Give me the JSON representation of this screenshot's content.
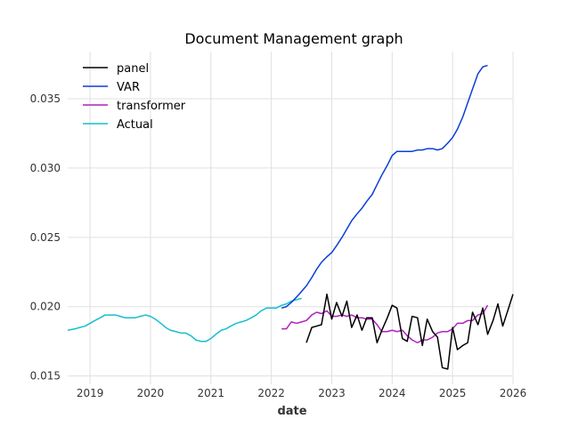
{
  "chart_data": {
    "type": "line",
    "title": "Document Management graph",
    "xlabel": "date",
    "ylabel": "",
    "xlim": [
      2018.63,
      2026.0
    ],
    "ylim": [
      0.0144,
      0.0384
    ],
    "grid": true,
    "legend_position": "top-left",
    "x_ticks": [
      2019,
      2020,
      2021,
      2022,
      2023,
      2024,
      2025,
      2026
    ],
    "x_tick_labels": [
      "2019",
      "2020",
      "2021",
      "2022",
      "2023",
      "2024",
      "2025",
      "2026"
    ],
    "y_ticks": [
      0.015,
      0.02,
      0.025,
      0.03,
      0.035
    ],
    "y_tick_labels": [
      "0.015",
      "0.020",
      "0.025",
      "0.030",
      "0.035"
    ],
    "series": [
      {
        "name": "panel",
        "color": "#000000",
        "x": [
          2022.58,
          2022.67,
          2022.75,
          2022.83,
          2022.92,
          2023.0,
          2023.08,
          2023.17,
          2023.25,
          2023.33,
          2023.42,
          2023.5,
          2023.58,
          2023.67,
          2023.75,
          2023.83,
          2023.92,
          2024.0,
          2024.08,
          2024.17,
          2024.25,
          2024.33,
          2024.42,
          2024.5,
          2024.58,
          2024.67,
          2024.75,
          2024.83,
          2024.92,
          2025.0,
          2025.08,
          2025.17,
          2025.25,
          2025.33,
          2025.42,
          2025.5,
          2025.58,
          2025.67,
          2025.75,
          2025.83,
          2025.92,
          2026.0
        ],
        "y": [
          0.0174,
          0.0185,
          0.0186,
          0.0187,
          0.0209,
          0.0191,
          0.0203,
          0.0193,
          0.0204,
          0.0185,
          0.0194,
          0.0183,
          0.0192,
          0.0192,
          0.0174,
          0.0183,
          0.0192,
          0.0201,
          0.0199,
          0.0177,
          0.0175,
          0.0193,
          0.0192,
          0.0172,
          0.0191,
          0.0182,
          0.0178,
          0.0156,
          0.0155,
          0.0185,
          0.0169,
          0.0172,
          0.0174,
          0.0196,
          0.0187,
          0.0199,
          0.018,
          0.019,
          0.0202,
          0.0186,
          0.0198,
          0.0209
        ]
      },
      {
        "name": "VAR",
        "color": "#0a3fd8",
        "x": [
          2022.17,
          2022.25,
          2022.33,
          2022.42,
          2022.5,
          2022.58,
          2022.67,
          2022.75,
          2022.83,
          2022.92,
          2023.0,
          2023.08,
          2023.17,
          2023.25,
          2023.33,
          2023.42,
          2023.5,
          2023.58,
          2023.67,
          2023.75,
          2023.83,
          2023.92,
          2024.0,
          2024.08,
          2024.17,
          2024.25,
          2024.33,
          2024.42,
          2024.5,
          2024.58,
          2024.67,
          2024.75,
          2024.83,
          2024.92,
          2025.0,
          2025.08,
          2025.17,
          2025.25,
          2025.33,
          2025.42,
          2025.5,
          2025.58
        ],
        "y": [
          0.0199,
          0.02,
          0.0203,
          0.0207,
          0.0211,
          0.0215,
          0.0221,
          0.0227,
          0.0232,
          0.0236,
          0.0239,
          0.0244,
          0.025,
          0.0256,
          0.0262,
          0.0267,
          0.0271,
          0.0276,
          0.0281,
          0.0288,
          0.0295,
          0.0302,
          0.0309,
          0.0312,
          0.0312,
          0.0312,
          0.0312,
          0.0313,
          0.0313,
          0.0314,
          0.0314,
          0.0313,
          0.0314,
          0.0318,
          0.0322,
          0.0328,
          0.0337,
          0.0347,
          0.0357,
          0.0368,
          0.0373,
          0.0374
        ]
      },
      {
        "name": "transformer",
        "color": "#b21fbf",
        "x": [
          2022.17,
          2022.25,
          2022.33,
          2022.42,
          2022.5,
          2022.58,
          2022.67,
          2022.75,
          2022.83,
          2022.92,
          2023.0,
          2023.08,
          2023.17,
          2023.25,
          2023.33,
          2023.42,
          2023.5,
          2023.58,
          2023.67,
          2023.75,
          2023.83,
          2023.92,
          2024.0,
          2024.08,
          2024.17,
          2024.25,
          2024.33,
          2024.42,
          2024.5,
          2024.58,
          2024.67,
          2024.75,
          2024.83,
          2024.92,
          2025.0,
          2025.08,
          2025.17,
          2025.25,
          2025.33,
          2025.42,
          2025.5,
          2025.58
        ],
        "y": [
          0.0184,
          0.0184,
          0.0189,
          0.0188,
          0.0189,
          0.019,
          0.0194,
          0.0196,
          0.0195,
          0.0197,
          0.0193,
          0.0193,
          0.0194,
          0.0193,
          0.0194,
          0.0192,
          0.0192,
          0.0191,
          0.0191,
          0.0187,
          0.0182,
          0.0182,
          0.0183,
          0.0182,
          0.0183,
          0.0179,
          0.0176,
          0.0174,
          0.0176,
          0.0176,
          0.0178,
          0.0181,
          0.0182,
          0.0182,
          0.0184,
          0.0188,
          0.0188,
          0.019,
          0.019,
          0.0194,
          0.0195,
          0.0201
        ]
      },
      {
        "name": "Actual",
        "color": "#17becf",
        "x": [
          2018.63,
          2018.75,
          2018.83,
          2018.92,
          2019.0,
          2019.08,
          2019.17,
          2019.25,
          2019.33,
          2019.42,
          2019.5,
          2019.58,
          2019.67,
          2019.75,
          2019.83,
          2019.92,
          2020.0,
          2020.08,
          2020.17,
          2020.25,
          2020.33,
          2020.42,
          2020.5,
          2020.58,
          2020.67,
          2020.75,
          2020.83,
          2020.92,
          2021.0,
          2021.08,
          2021.17,
          2021.25,
          2021.33,
          2021.42,
          2021.5,
          2021.58,
          2021.67,
          2021.75,
          2021.83,
          2021.92,
          2022.0,
          2022.08,
          2022.17,
          2022.25,
          2022.33,
          2022.42,
          2022.5
        ],
        "y": [
          0.0183,
          0.0184,
          0.0185,
          0.0186,
          0.0188,
          0.019,
          0.0192,
          0.0194,
          0.0194,
          0.0194,
          0.0193,
          0.0192,
          0.0192,
          0.0192,
          0.0193,
          0.0194,
          0.0193,
          0.0191,
          0.0188,
          0.0185,
          0.0183,
          0.0182,
          0.0181,
          0.0181,
          0.0179,
          0.0176,
          0.0175,
          0.0175,
          0.0177,
          0.018,
          0.0183,
          0.0184,
          0.0186,
          0.0188,
          0.0189,
          0.019,
          0.0192,
          0.0194,
          0.0197,
          0.0199,
          0.0199,
          0.0199,
          0.0201,
          0.0202,
          0.0204,
          0.0205,
          0.0206
        ]
      }
    ]
  }
}
